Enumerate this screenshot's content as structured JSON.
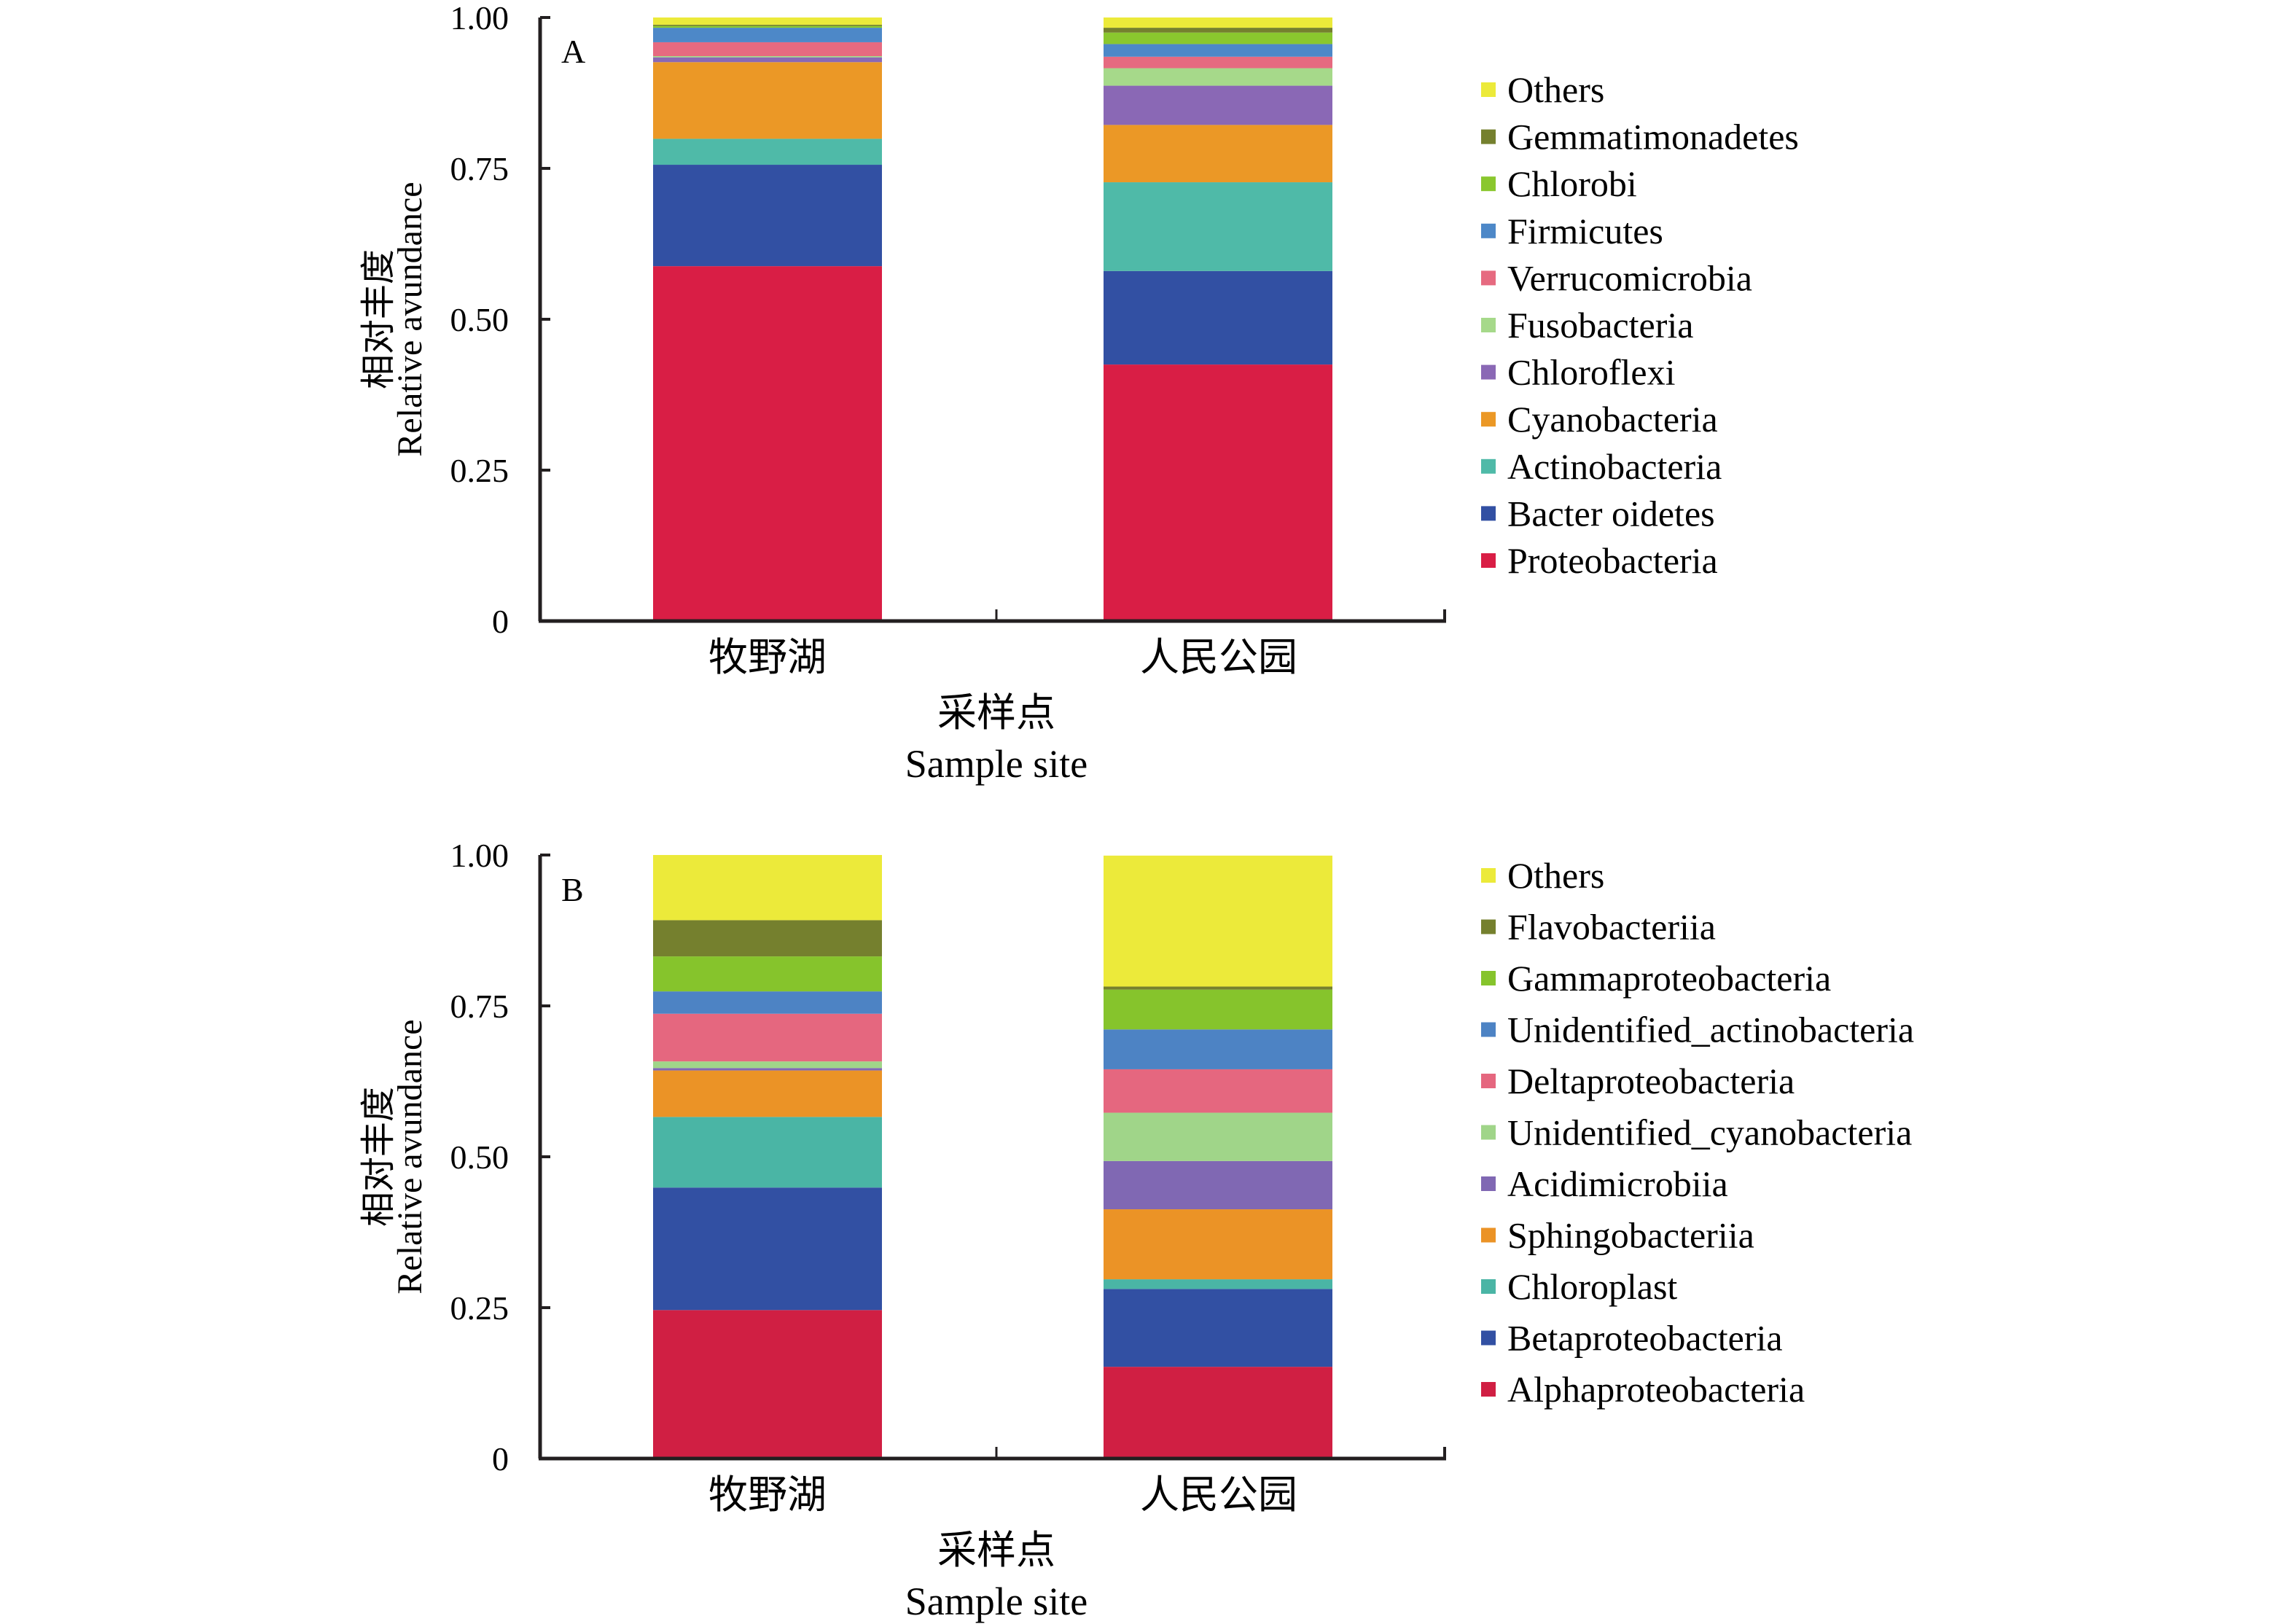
{
  "chart_data": [
    {
      "type": "bar",
      "stacked": true,
      "panel_label": "A",
      "categories": [
        "牧野湖",
        "人民公园"
      ],
      "xlabel_cn": "采样点",
      "xlabel_en": "Sample site",
      "ylabel_cn": "相对丰度",
      "ylabel_en": "Relative avundance",
      "ylim": [
        0,
        1.0
      ],
      "yticks": [
        0,
        0.25,
        0.5,
        0.75,
        1.0
      ],
      "ytick_labels": [
        "0",
        "0.25",
        "0.50",
        "0.75",
        "1.00"
      ],
      "grid": false,
      "legend_position": "right",
      "series": [
        {
          "name": "Proteobacteria",
          "color": "#d91e45",
          "values": [
            0.588,
            0.425
          ]
        },
        {
          "name": "Bacter oidetes",
          "color": "#3250a3",
          "values": [
            0.168,
            0.155
          ]
        },
        {
          "name": "Actinobacteria",
          "color": "#4fbaa8",
          "values": [
            0.043,
            0.147
          ]
        },
        {
          "name": "Cyanobacteria",
          "color": "#eb9826",
          "values": [
            0.127,
            0.095
          ]
        },
        {
          "name": "Chloroflexi",
          "color": "#8a68b5",
          "values": [
            0.008,
            0.065
          ]
        },
        {
          "name": "Fusobacteria",
          "color": "#a6d98a",
          "values": [
            0.002,
            0.029
          ]
        },
        {
          "name": "Verrucomicrobia",
          "color": "#e66a80",
          "values": [
            0.023,
            0.019
          ]
        },
        {
          "name": "Firmicutes",
          "color": "#4d88c8",
          "values": [
            0.024,
            0.021
          ]
        },
        {
          "name": "Chlorobi",
          "color": "#8ac72e",
          "values": [
            0.003,
            0.019
          ]
        },
        {
          "name": "Gemmatimonadetes",
          "color": "#75802e",
          "values": [
            0.002,
            0.008
          ]
        },
        {
          "name": "Others",
          "color": "#ecea3a",
          "values": [
            0.012,
            0.017
          ]
        }
      ]
    },
    {
      "type": "bar",
      "stacked": true,
      "panel_label": "B",
      "categories": [
        "牧野湖",
        "人民公园"
      ],
      "xlabel_cn": "采样点",
      "xlabel_en": "Sample site",
      "ylabel_cn": "相对丰度",
      "ylabel_en": "Relative avundance",
      "ylim": [
        0,
        1.0
      ],
      "yticks": [
        0,
        0.25,
        0.5,
        0.75,
        1.0
      ],
      "ytick_labels": [
        "0",
        "0.25",
        "0.50",
        "0.75",
        "1.00"
      ],
      "grid": false,
      "legend_position": "right",
      "series": [
        {
          "name": "Alphaproteobacteria",
          "color": "#d01f43",
          "values": [
            0.246,
            0.152
          ]
        },
        {
          "name": "Betaproteobacteria",
          "color": "#3250a3",
          "values": [
            0.203,
            0.129
          ]
        },
        {
          "name": "Chloroplast",
          "color": "#4ab5a5",
          "values": [
            0.117,
            0.016
          ]
        },
        {
          "name": "Sphingobacteriia",
          "color": "#eb9326",
          "values": [
            0.077,
            0.116
          ]
        },
        {
          "name": "Acidimicrobiia",
          "color": "#8068b3",
          "values": [
            0.004,
            0.08
          ]
        },
        {
          "name": "Unidentified_cyanobacteria",
          "color": "#a0d589",
          "values": [
            0.011,
            0.08
          ]
        },
        {
          "name": "Deltaproteobacteria",
          "color": "#e5677f",
          "values": [
            0.079,
            0.072
          ]
        },
        {
          "name": "Unidentified_actinobacteria",
          "color": "#4d83c4",
          "values": [
            0.037,
            0.066
          ]
        },
        {
          "name": "Gammaproteobacteria",
          "color": "#86c42c",
          "values": [
            0.058,
            0.066
          ]
        },
        {
          "name": "Flavobacteriia",
          "color": "#75802e",
          "values": [
            0.06,
            0.005
          ]
        },
        {
          "name": "Others",
          "color": "#ecea3a",
          "values": [
            0.108,
            0.217
          ]
        }
      ]
    }
  ]
}
